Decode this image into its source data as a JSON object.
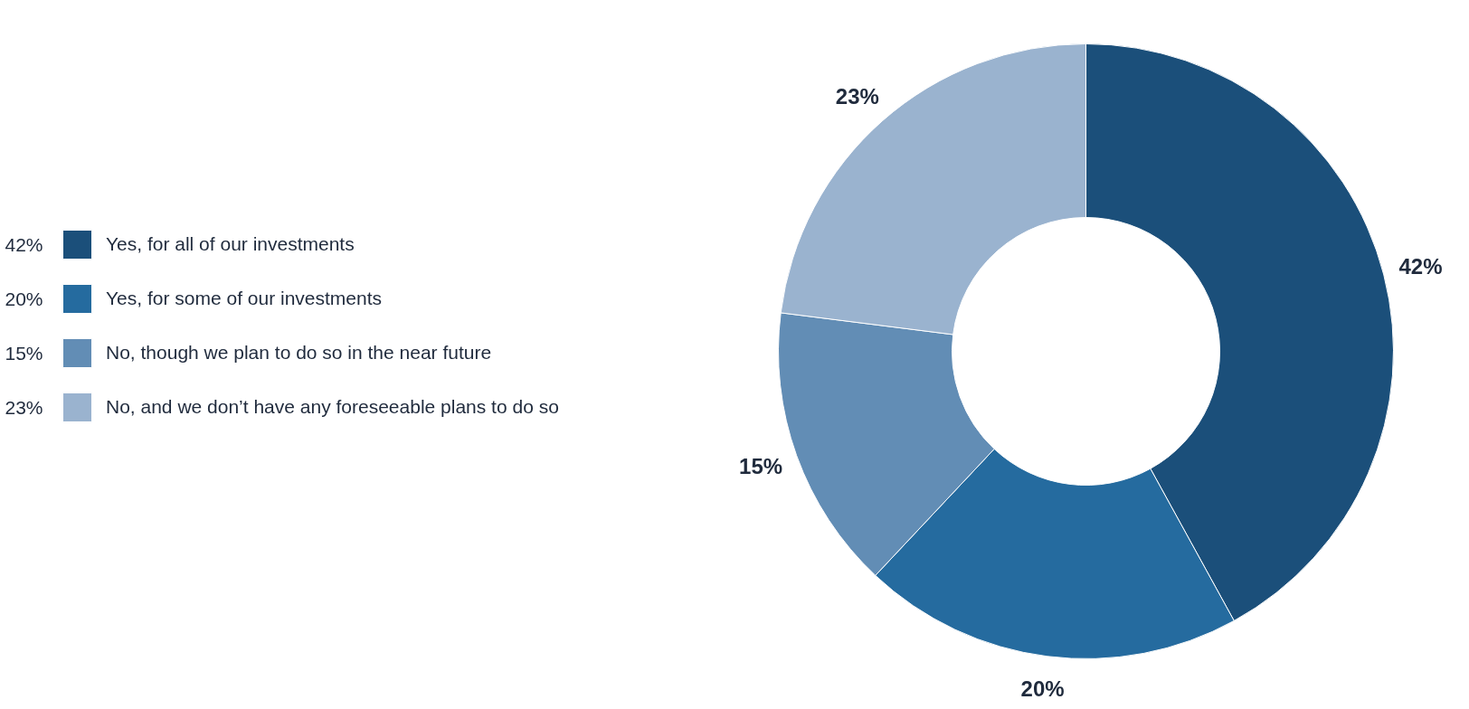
{
  "chart_data": {
    "type": "donut",
    "categories": [
      "Yes, for all of our investments",
      "Yes, for some of our investments",
      "No, though we plan to do so in the near future",
      "No, and we don’t have any foreseeable plans to do so"
    ],
    "values": [
      42,
      20,
      15,
      23
    ],
    "colors": [
      "#1b4f7a",
      "#256b9f",
      "#628db5",
      "#9ab3cf"
    ],
    "value_labels": [
      "42%",
      "20%",
      "15%",
      "23%"
    ],
    "legend": "left"
  }
}
